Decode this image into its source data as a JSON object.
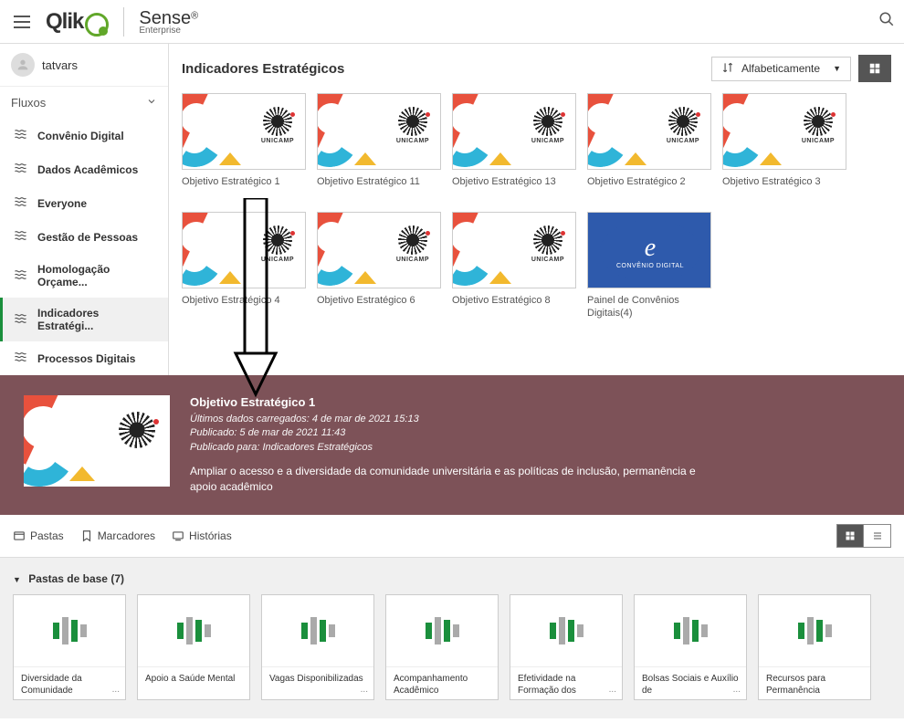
{
  "topbar": {
    "brand_main": "Qlik",
    "brand_product": "Sense",
    "brand_edition": "Enterprise"
  },
  "sidebar": {
    "username": "tatvars",
    "section_label": "Fluxos",
    "items": [
      {
        "label": "Convênio Digital",
        "active": false
      },
      {
        "label": "Dados Acadêmicos",
        "active": false
      },
      {
        "label": "Everyone",
        "active": false
      },
      {
        "label": "Gestão de Pessoas",
        "active": false
      },
      {
        "label": "Homologação Orçame...",
        "active": false
      },
      {
        "label": "Indicadores Estratégi...",
        "active": true
      },
      {
        "label": "Processos Digitais",
        "active": false
      }
    ]
  },
  "hub": {
    "title": "Indicadores Estratégicos",
    "sort_label": "Alfabeticamente",
    "cards": [
      {
        "label": "Objetivo Estratégico 1",
        "type": "unicamp"
      },
      {
        "label": "Objetivo Estratégico 11",
        "type": "unicamp"
      },
      {
        "label": "Objetivo Estratégico 13",
        "type": "unicamp"
      },
      {
        "label": "Objetivo Estratégico 2",
        "type": "unicamp"
      },
      {
        "label": "Objetivo Estratégico 3",
        "type": "unicamp"
      },
      {
        "label": "Objetivo Estratégico 4",
        "type": "unicamp"
      },
      {
        "label": "Objetivo Estratégico 6",
        "type": "unicamp"
      },
      {
        "label": "Objetivo Estratégico 8",
        "type": "unicamp"
      },
      {
        "label": "Painel de Convênios Digitais(4)",
        "type": "blue",
        "blue_text": "CONVÊNIO DIGITAL"
      }
    ],
    "uni_label": "UNICAMP"
  },
  "detail": {
    "title": "Objetivo Estratégico 1",
    "meta1": "Últimos dados carregados: 4 de mar de 2021 15:13",
    "meta2": "Publicado: 5 de mar de 2021 11:43",
    "meta3": "Publicado para: Indicadores Estratégicos",
    "desc": "Ampliar o acesso e a diversidade da comunidade universitária e as políticas de inclusão, permanência e apoio acadêmico",
    "uni_label": "UNICAMP"
  },
  "tabs": {
    "pastas": "Pastas",
    "marcadores": "Marcadores",
    "historias": "Histórias"
  },
  "sheets": {
    "head": "Pastas de base (7)",
    "items": [
      {
        "label": "Diversidade da Comunidade",
        "dots": true,
        "bars": [
          18,
          30,
          24,
          14
        ]
      },
      {
        "label": "Apoio a Saúde Mental",
        "dots": false,
        "bars": [
          18,
          30,
          24,
          14
        ]
      },
      {
        "label": "Vagas Disponibilizadas",
        "dots": true,
        "bars": [
          18,
          30,
          24,
          14
        ]
      },
      {
        "label": "Acompanhamento Acadêmico",
        "dots": false,
        "bars": [
          18,
          30,
          24,
          14
        ]
      },
      {
        "label": "Efetividade na Formação dos",
        "dots": true,
        "bars": [
          18,
          30,
          24,
          14
        ]
      },
      {
        "label": "Bolsas Sociais e Auxílio de",
        "dots": true,
        "bars": [
          18,
          30,
          24,
          14
        ]
      },
      {
        "label": "Recursos para Permanência",
        "dots": false,
        "bars": [
          18,
          30,
          24,
          14
        ]
      }
    ]
  },
  "colors": {
    "banner_bg": "#7d5258",
    "green": "#1a8f3c",
    "grey": "#aaaaaa"
  }
}
